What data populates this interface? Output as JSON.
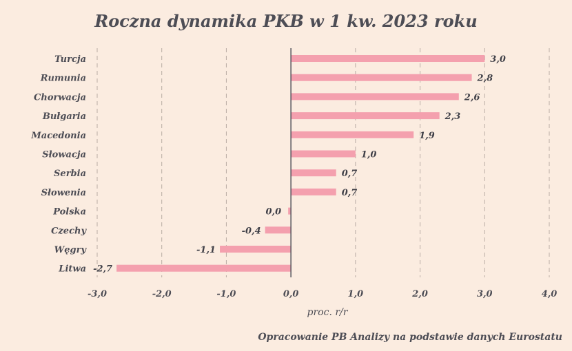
{
  "chart_data": {
    "type": "bar",
    "orientation": "horizontal",
    "title": "Roczna dynamika PKB w 1 kw. 2023 roku",
    "xlabel": "proc. r/r",
    "categories": [
      "Turcja",
      "Rumunia",
      "Chorwacja",
      "Bułgaria",
      "Macedonia",
      "Słowacja",
      "Serbia",
      "Słowenia",
      "Polska",
      "Czechy",
      "Węgry",
      "Litwa"
    ],
    "values": [
      3.0,
      2.8,
      2.6,
      2.3,
      1.9,
      1.0,
      0.7,
      0.7,
      0.0,
      -0.4,
      -1.1,
      -2.7
    ],
    "value_labels": [
      "3,0",
      "2,8",
      "2,6",
      "2,3",
      "1,9",
      "1,0",
      "0,7",
      "0,7",
      "0,0",
      "-0,4",
      "-1,1",
      "-2,7"
    ],
    "xlim": [
      -3.0,
      4.0
    ],
    "xticks": [
      -3,
      -2,
      -1,
      0,
      1,
      2,
      3,
      4
    ],
    "xtick_labels": [
      "-3,0",
      "-2,0",
      "-1,0",
      "0,0",
      "1,0",
      "2,0",
      "3,0",
      "4,0"
    ],
    "grid": "vertical-dashed",
    "bar_color": "#f4a0ae",
    "background_color": "#fbece0",
    "text_color": "#4d4d55"
  },
  "source": "Opracowanie PB Analizy na podstawie danych Eurostatu"
}
